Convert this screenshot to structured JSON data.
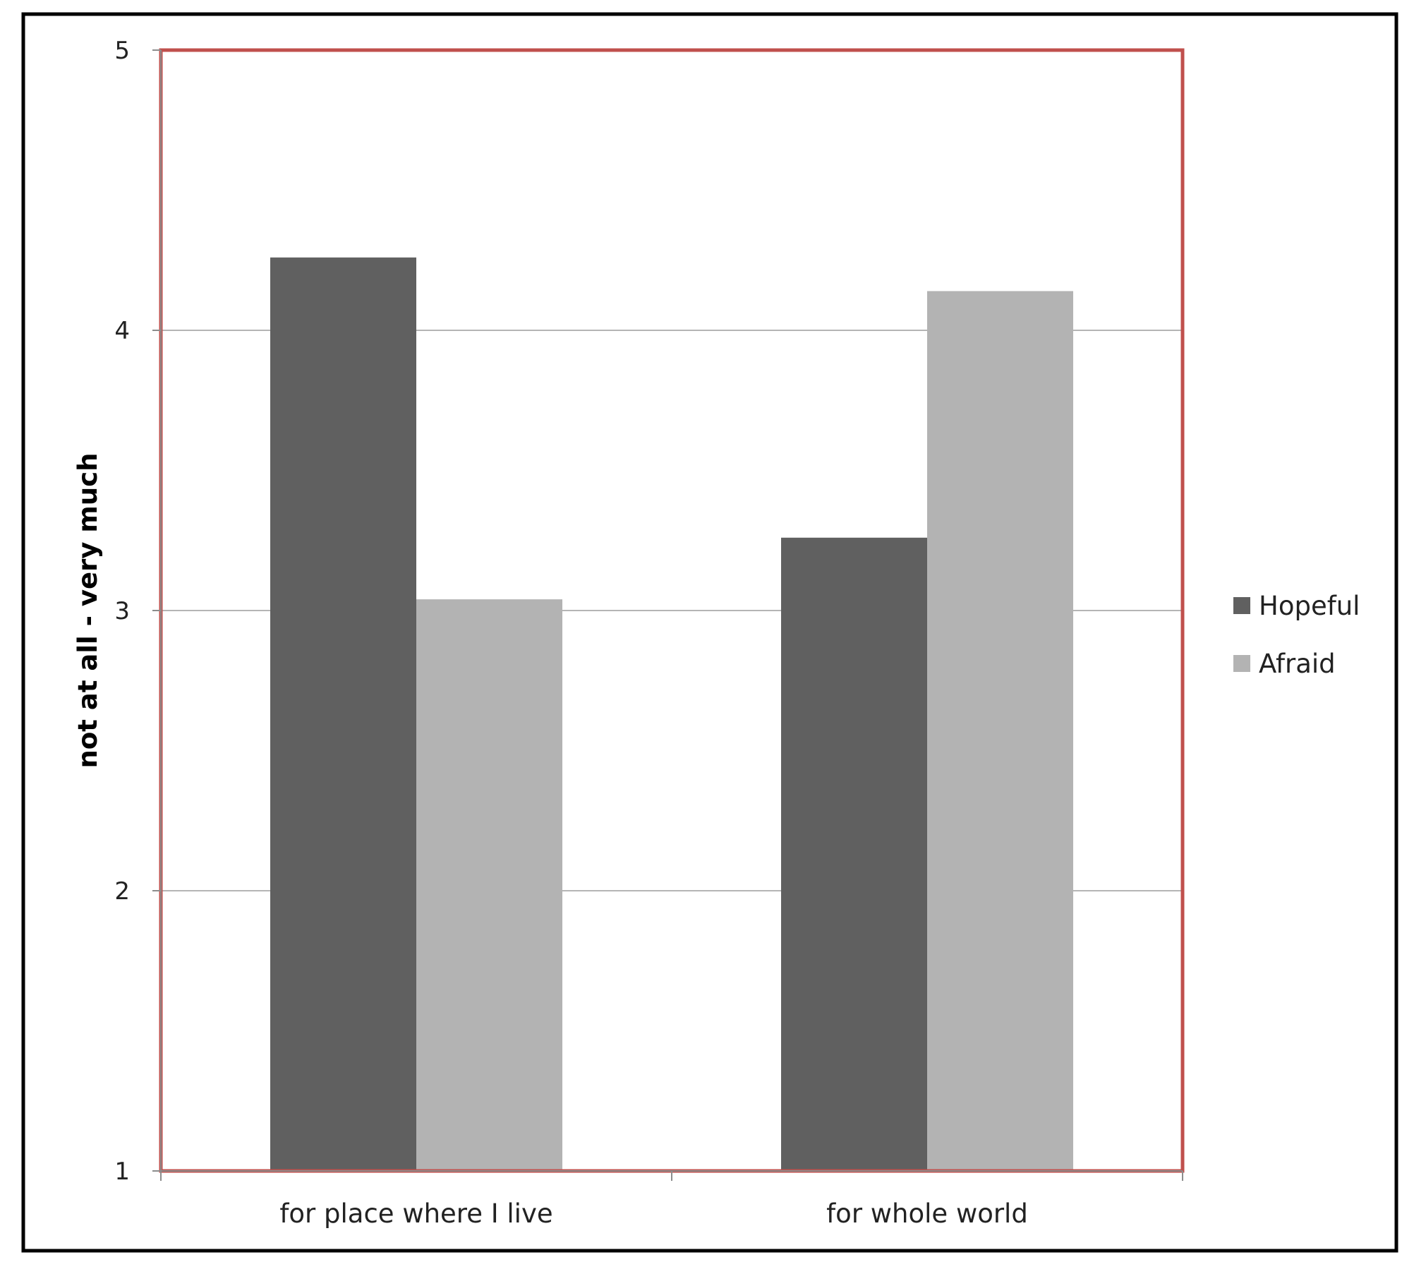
{
  "chart_data": {
    "type": "bar",
    "title": "",
    "xlabel": "",
    "ylabel": "not at all - very much",
    "ylim": [
      1,
      5
    ],
    "yticks": [
      "1",
      "2",
      "3",
      "4",
      "5"
    ],
    "categories": [
      "for place where I live",
      "for whole world"
    ],
    "series": [
      {
        "name": "Hopeful",
        "color": "#606060",
        "values": [
          4.26,
          3.26
        ]
      },
      {
        "name": "Afraid",
        "color": "#b3b3b3",
        "values": [
          3.04,
          4.14
        ]
      }
    ],
    "grid": true,
    "legend_position": "right",
    "plot_border_color": "#c0504d",
    "frame_color": "#000000"
  }
}
